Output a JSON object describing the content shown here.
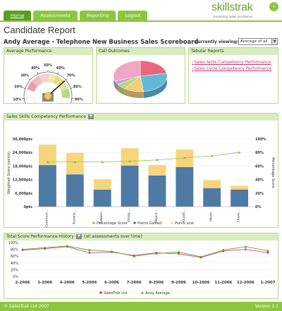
{
  "nav": {
    "tabs": [
      {
        "label": "Home",
        "active": true
      },
      {
        "label": "Assessments",
        "active": false
      },
      {
        "label": "Reporting",
        "active": false
      },
      {
        "label": "Logout",
        "active": false
      }
    ]
  },
  "logo": {
    "text": "skillstrak",
    "tagline": "monitoring sales excellence",
    "badge_icon": "arrow-circle-icon"
  },
  "page": {
    "title": "Candidate Report",
    "subtitle": "Andy Average - Telephone New Business Sales Scoreboard",
    "viewing_label": "Currently viewing:",
    "viewing_value": "Average of all"
  },
  "panels": {
    "average_performance": {
      "title": "Average Performance",
      "gauge_labels": [
        "0%",
        "10%",
        "20%",
        "30%",
        "40%",
        "50%",
        "60%",
        "70%",
        "80%",
        "90%",
        "100%"
      ],
      "needle_value": 70
    },
    "call_outcomes": {
      "title": "Call Outcomes"
    },
    "tabular_reports": {
      "title": "Tabular Reports",
      "links": [
        "Sales Skills Competency Performance",
        "Sales Cycle Competency Performance"
      ]
    },
    "competency": {
      "title": "Sales Skills Competency Performance"
    },
    "history": {
      "title": "Total Score Performance History",
      "subtitle": "(all assessments over time)"
    }
  },
  "chart_data": [
    {
      "type": "pie",
      "title": "Call Outcomes",
      "values": [
        22,
        26,
        12,
        6,
        4,
        30
      ],
      "colors": [
        "#e8677e",
        "#63b8d8",
        "#f0cf7a",
        "#b9d97a",
        "#bfa6dc",
        "#f2a6c7"
      ]
    },
    {
      "type": "bar",
      "title": "Sales Skills Competency Performance",
      "categories": [
        "Commun...",
        "Knowle...",
        "Admini...",
        "Interp...",
        "Object...",
        "Qualif...",
        "Pitchi...",
        "Closin..."
      ],
      "series": [
        {
          "name": "Points Gained",
          "values": [
            18400,
            14300,
            7500,
            18200,
            13800,
            17500,
            8200,
            7600
          ],
          "color": "#4e7aa3"
        },
        {
          "name": "Points Lost",
          "values": [
            9100,
            9500,
            4600,
            7700,
            4600,
            7800,
            3500,
            1600
          ],
          "color": "#f7d57c"
        },
        {
          "name": "Percentage Score",
          "values": [
            66,
            66,
            66,
            67,
            69,
            72,
            75,
            80
          ],
          "color": "#8cc63f"
        }
      ],
      "ylabel": "Weighted Score (points)",
      "y2label": "Percentage Score",
      "yticks": [
        "0pts",
        "6,000pts",
        "12,000pts",
        "18,000pts",
        "24,000pts",
        "30,000pts"
      ],
      "y2ticks": [
        "0%",
        "20%",
        "40%",
        "60%",
        "80%",
        "100%"
      ],
      "ylim": [
        0,
        30000
      ],
      "y2lim": [
        0,
        100
      ],
      "legend": [
        "Percentage Score",
        "Points Gained",
        "Points Lost"
      ]
    },
    {
      "type": "line",
      "title": "Total Score Performance History",
      "categories": [
        "2-2006",
        "3-2006",
        "4-2006",
        "5-2006",
        "6-2006",
        "7-2006",
        "8-2006",
        "9-2006",
        "10-2006",
        "11-2006",
        "12-2006",
        "1-2007"
      ],
      "series": [
        {
          "name": "SalesTrak Ltd",
          "values": [
            78,
            82,
            88,
            70,
            72,
            62,
            70,
            67,
            56,
            75,
            80,
            70
          ],
          "color": "#cc3366"
        },
        {
          "name": "Andy Average",
          "values": [
            80,
            85,
            90,
            78,
            74,
            60,
            68,
            72,
            58,
            78,
            88,
            76
          ],
          "color": "#5c9e1e"
        }
      ],
      "yticks": [
        "0%",
        "20%",
        "40%",
        "60%",
        "80%",
        "100%"
      ],
      "ylim": [
        0,
        100
      ]
    }
  ],
  "footer": {
    "left": "© SalesTrak Ltd 2007",
    "right": "Version 1.1"
  }
}
